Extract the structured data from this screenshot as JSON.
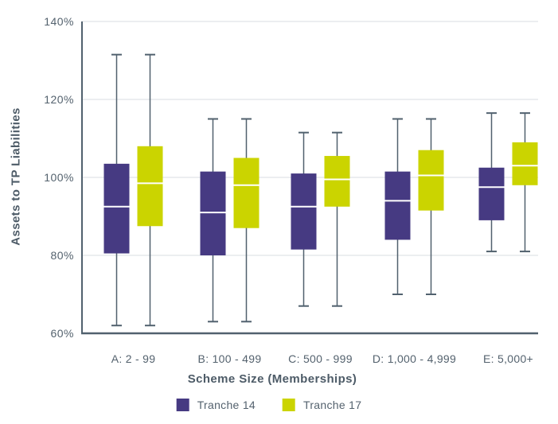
{
  "chart_data": {
    "type": "boxplot",
    "title": "",
    "xlabel": "Scheme Size (Memberships)",
    "ylabel": "Assets to TP Liabilities",
    "ylim": [
      60,
      140
    ],
    "grid": true,
    "legend_position": "bottom",
    "y_ticks": [
      {
        "label": "140%",
        "value": 140
      },
      {
        "label": "120%",
        "value": 120
      },
      {
        "label": "100%",
        "value": 100
      },
      {
        "label": "80%",
        "value": 80
      },
      {
        "label": "60%",
        "value": 60
      }
    ],
    "categories": [
      "A: 2 - 99",
      "B: 100 - 499",
      "C: 500 - 999",
      "D: 1,000 - 4,999",
      "E: 5,000+"
    ],
    "series": [
      {
        "name": "Tranche 14",
        "color": "#463a82",
        "boxes": [
          {
            "min": 62,
            "q1": 80.5,
            "median": 92.5,
            "q3": 103.5,
            "max": 131.5
          },
          {
            "min": 63,
            "q1": 80,
            "median": 91,
            "q3": 101.5,
            "max": 115
          },
          {
            "min": 67,
            "q1": 81.5,
            "median": 92.5,
            "q3": 101,
            "max": 111.5
          },
          {
            "min": 70,
            "q1": 84,
            "median": 94,
            "q3": 101.5,
            "max": 115
          },
          {
            "min": 81,
            "q1": 89,
            "median": 97.5,
            "q3": 102.5,
            "max": 116.5
          }
        ]
      },
      {
        "name": "Tranche 17",
        "color": "#cbd400",
        "boxes": [
          {
            "min": 62,
            "q1": 87.5,
            "median": 98.5,
            "q3": 108,
            "max": 131.5
          },
          {
            "min": 63,
            "q1": 87,
            "median": 98,
            "q3": 105,
            "max": 115
          },
          {
            "min": 67,
            "q1": 92.5,
            "median": 99.5,
            "q3": 105.5,
            "max": 111.5
          },
          {
            "min": 70,
            "q1": 91.5,
            "median": 100.5,
            "q3": 107,
            "max": 115
          },
          {
            "min": 81,
            "q1": 98,
            "median": 103,
            "q3": 109,
            "max": 116.5
          }
        ]
      }
    ]
  },
  "colors": {
    "axis": "#51616e",
    "whisker": "#51616e",
    "grid": "#dadde0",
    "median": "#ffffff",
    "text": "#54626e"
  }
}
